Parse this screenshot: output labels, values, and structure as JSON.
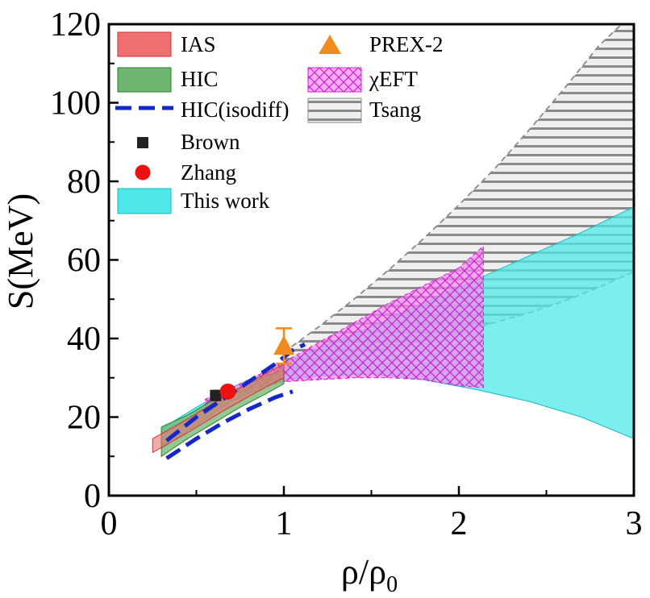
{
  "chart_data": {
    "type": "area",
    "xlabel_main": "ρ/ρ",
    "xlabel_sub": "0",
    "ylabel": "S(MeV)",
    "xlim": [
      0,
      3
    ],
    "ylim": [
      0,
      120
    ],
    "xticks": [
      "0",
      "1",
      "2",
      "3"
    ],
    "yticks": [
      "0",
      "20",
      "40",
      "60",
      "80",
      "100",
      "120"
    ],
    "grid": false,
    "legend": {
      "placement": "top-left",
      "entries": [
        {
          "id": "ias",
          "label": "IAS"
        },
        {
          "id": "hic",
          "label": "HIC"
        },
        {
          "id": "hic_isodiff",
          "label": "HIC(isodiff)"
        },
        {
          "id": "brown",
          "label": "Brown"
        },
        {
          "id": "zhang",
          "label": "Zhang"
        },
        {
          "id": "this_work",
          "label": "This work"
        },
        {
          "id": "prex2",
          "label": "PREX-2"
        },
        {
          "id": "chieft",
          "label": "χEFT"
        },
        {
          "id": "tsang",
          "label": "Tsang"
        }
      ]
    },
    "series": {
      "tsang": {
        "name": "Tsang",
        "upper": [
          [
            1.0,
            36.5
          ],
          [
            1.2,
            43
          ],
          [
            1.4,
            50
          ],
          [
            1.6,
            57.5
          ],
          [
            1.8,
            65.5
          ],
          [
            2.0,
            74
          ],
          [
            2.2,
            83
          ],
          [
            2.4,
            93
          ],
          [
            2.6,
            103.5
          ],
          [
            2.8,
            114.5
          ],
          [
            2.93,
            120
          ],
          [
            3.0,
            120
          ]
        ],
        "lower": [
          [
            1.0,
            31
          ],
          [
            1.2,
            33.5
          ],
          [
            1.4,
            35.5
          ],
          [
            1.6,
            37.5
          ],
          [
            1.8,
            39.5
          ],
          [
            2.0,
            41.5
          ],
          [
            2.2,
            44
          ],
          [
            2.4,
            46.5
          ],
          [
            2.6,
            49.5
          ],
          [
            2.8,
            53
          ],
          [
            3.0,
            57
          ]
        ]
      },
      "this_work": {
        "name": "This work",
        "upper": [
          [
            0.3,
            17
          ],
          [
            0.5,
            22.5
          ],
          [
            0.7,
            27.5
          ],
          [
            0.9,
            31.5
          ],
          [
            1.0,
            33.5
          ],
          [
            1.2,
            37.5
          ],
          [
            1.5,
            43
          ],
          [
            1.8,
            49
          ],
          [
            2.1,
            55
          ],
          [
            2.4,
            61
          ],
          [
            2.7,
            67
          ],
          [
            3.0,
            73.5
          ]
        ],
        "lower": [
          [
            0.3,
            12
          ],
          [
            0.5,
            18
          ],
          [
            0.7,
            24
          ],
          [
            0.9,
            28
          ],
          [
            1.0,
            29.5
          ],
          [
            1.2,
            30.5
          ],
          [
            1.5,
            31
          ],
          [
            1.8,
            29.5
          ],
          [
            2.1,
            27
          ],
          [
            2.4,
            24
          ],
          [
            2.7,
            20
          ],
          [
            3.0,
            14.5
          ]
        ]
      },
      "chieft": {
        "name": "χEFT",
        "upper": [
          [
            0.55,
            24.5
          ],
          [
            0.8,
            29.5
          ],
          [
            1.0,
            34
          ],
          [
            1.2,
            39
          ],
          [
            1.4,
            44
          ],
          [
            1.6,
            49
          ],
          [
            1.8,
            53.5
          ],
          [
            2.0,
            58
          ],
          [
            2.14,
            63.5
          ]
        ],
        "lower": [
          [
            0.55,
            23
          ],
          [
            0.8,
            27
          ],
          [
            1.0,
            29
          ],
          [
            1.2,
            29.5
          ],
          [
            1.4,
            30
          ],
          [
            1.6,
            30
          ],
          [
            1.8,
            29.5
          ],
          [
            2.0,
            28
          ],
          [
            2.14,
            27.5
          ]
        ]
      },
      "hic": {
        "name": "HIC",
        "upper": [
          [
            0.3,
            17.5
          ],
          [
            0.45,
            20.5
          ],
          [
            0.6,
            24.5
          ],
          [
            0.75,
            27.5
          ],
          [
            0.9,
            30.5
          ],
          [
            1.0,
            32
          ]
        ],
        "lower": [
          [
            0.3,
            10
          ],
          [
            0.45,
            14.5
          ],
          [
            0.6,
            18.5
          ],
          [
            0.75,
            22.5
          ],
          [
            0.9,
            26
          ],
          [
            1.0,
            28.5
          ]
        ]
      },
      "ias": {
        "name": "IAS",
        "upper": [
          [
            0.25,
            14.5
          ],
          [
            0.45,
            19.5
          ],
          [
            0.65,
            25
          ],
          [
            0.85,
            30
          ],
          [
            1.0,
            33.5
          ]
        ],
        "lower": [
          [
            0.25,
            11
          ],
          [
            0.45,
            16
          ],
          [
            0.65,
            21.5
          ],
          [
            0.85,
            26.5
          ],
          [
            1.0,
            30
          ]
        ]
      },
      "hic_isodiff": {
        "name": "HIC(isodiff)",
        "upper": [
          [
            0.33,
            14
          ],
          [
            0.5,
            20
          ],
          [
            0.65,
            24.5
          ],
          [
            0.8,
            29
          ],
          [
            0.95,
            33.5
          ],
          [
            1.05,
            37
          ],
          [
            1.12,
            38.5
          ]
        ],
        "lower": [
          [
            0.33,
            9.5
          ],
          [
            0.5,
            14.5
          ],
          [
            0.65,
            18.5
          ],
          [
            0.8,
            22
          ],
          [
            0.95,
            25
          ],
          [
            1.05,
            26.5
          ]
        ]
      },
      "brown": {
        "name": "Brown",
        "x": 0.61,
        "y": 25.5,
        "err_lo": 1.2,
        "err_hi": 1.2
      },
      "zhang": {
        "name": "Zhang",
        "x": 0.68,
        "y": 26.5,
        "err_lo": 0.5,
        "err_hi": 0.5
      },
      "prex2": {
        "name": "PREX-2",
        "x": 1.0,
        "y": 38.1,
        "err_lo": 4.5,
        "err_hi": 4.5
      }
    },
    "colors": {
      "ias_fill": "#f07070",
      "ias_edge": "#d23030",
      "hic_fill": "#6fb56f",
      "hic_edge": "#2e7d2e",
      "hic_isodiff": "#1428c8",
      "brown": "#222222",
      "zhang": "#ee1111",
      "this_work_fill": "#4fe8e8",
      "this_work_edge": "#19b8c0",
      "prex2": "#f28a1e",
      "chieft_fill": "#f58cf0",
      "chieft_hatch": "#d01fd0",
      "tsang_fill": "#efefef",
      "tsang_hatch": "#8a8a8a",
      "tsang_edge": "#8a8a8a"
    }
  }
}
